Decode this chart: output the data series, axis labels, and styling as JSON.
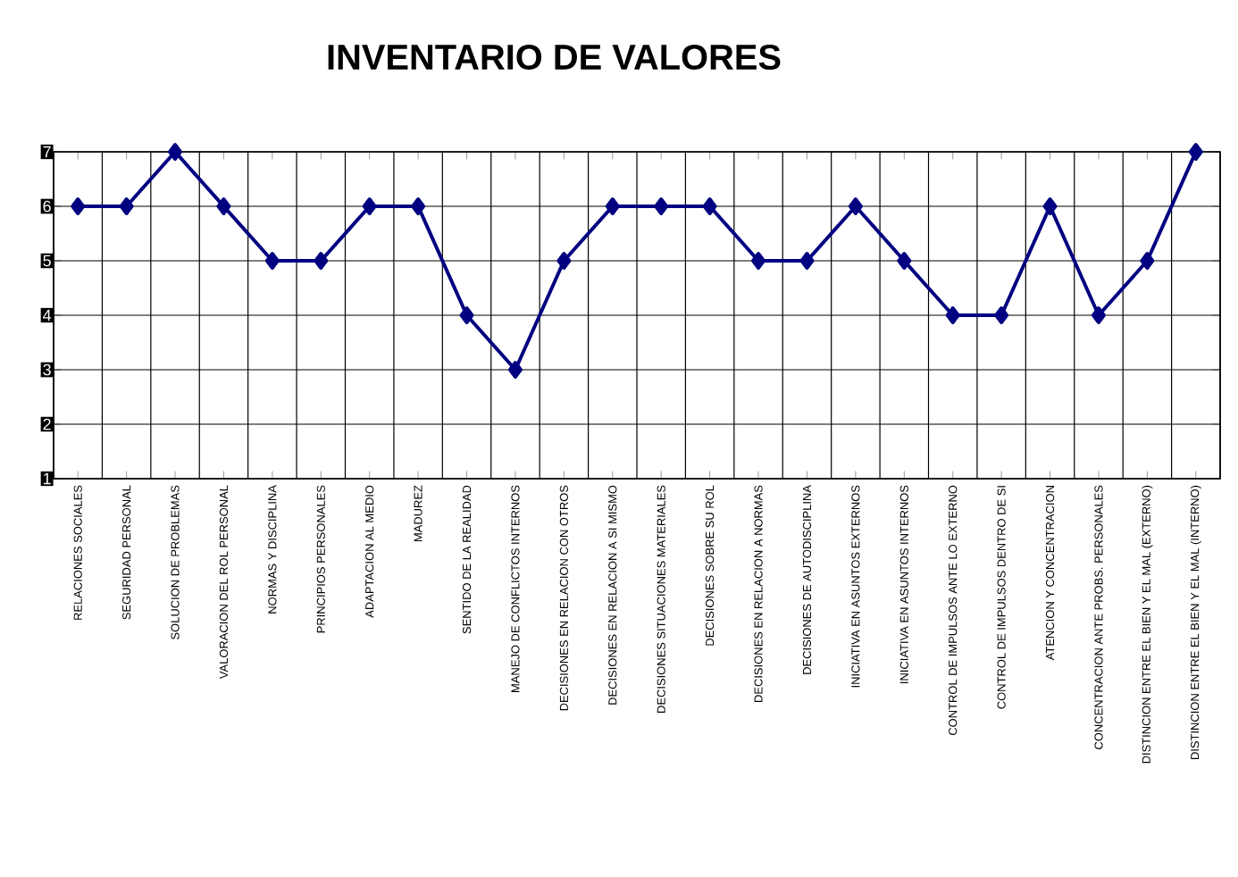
{
  "chart_data": {
    "type": "line",
    "title": "INVENTARIO DE VALORES",
    "categories": [
      "RELACIONES SOCIALES",
      "SEGURIDAD PERSONAL",
      "SOLUCION DE PROBLEMAS",
      "VALORACION DEL ROL PERSONAL",
      "NORMAS Y DISCIPLINA",
      "PRINCIPIOS PERSONALES",
      "ADAPTACION AL MEDIO",
      "MADUREZ",
      "SENTIDO DE LA REALIDAD",
      "MANEJO DE CONFLICTOS INTERNOS",
      "DECISIONES EN RELACION CON OTROS",
      "DECISIONES EN RELACION A SI MISMO",
      "DECISIONES SITUACIONES MATERIALES",
      "DECISIONES SOBRE SU ROL",
      "DECISIONES EN RELACION A NORMAS",
      "DECISIONES DE AUTODISCIPLINA",
      "INICIATIVA EN ASUNTOS EXTERNOS",
      "INICIATIVA EN ASUNTOS INTERNOS",
      "CONTROL DE IMPULSOS ANTE LO EXTERNO",
      "CONTROL DE IMPULSOS DENTRO DE SI",
      "ATENCION Y CONCENTRACION",
      "CONCENTRACION ANTE PROBS. PERSONALES",
      "DISTINCION ENTRE EL BIEN Y EL MAL (EXTERNO)",
      "DISTINCION ENTRE EL BIEN Y EL MAL (INTERNO)"
    ],
    "values": [
      6,
      6,
      7,
      6,
      5,
      5,
      6,
      6,
      4,
      3,
      5,
      6,
      6,
      6,
      5,
      5,
      6,
      5,
      4,
      4,
      6,
      4,
      5,
      7
    ],
    "color": "#000080",
    "ylim": [
      1,
      7
    ],
    "yticks": [
      1,
      2,
      3,
      4,
      5,
      6,
      7
    ],
    "grid": true,
    "marker": "diamond",
    "line_style": "solid"
  }
}
